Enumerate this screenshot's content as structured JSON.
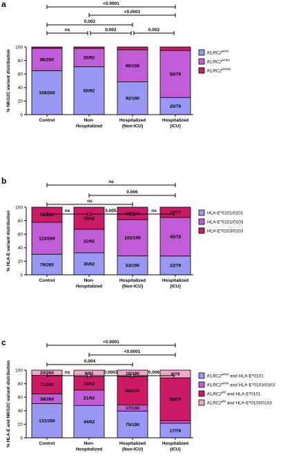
{
  "colors": {
    "blue": "#9999f5",
    "purple": "#bf5cd6",
    "magenta": "#cc1a66",
    "pink": "#f0a6c6",
    "black": "#000000"
  },
  "chart_data": [
    {
      "panel": "a",
      "type": "bar",
      "stacked": true,
      "ylabel": "% NKG2C variant distribution",
      "ylim": [
        0,
        100
      ],
      "yticks": [
        0,
        20,
        40,
        60,
        80,
        100
      ],
      "categories": [
        "Control",
        "Non-\nHospitalized",
        "Hospitalized\n(Non-ICU)",
        "Hospitalized\n(ICU)"
      ],
      "series": [
        {
          "name": "KLRC2^wt/wt",
          "color": "blue",
          "values": [
            65.0,
            70.7,
            48.4,
            25.3
          ],
          "labels": [
            "169/260",
            "65/92",
            "92/190",
            "20/79"
          ]
        },
        {
          "name": "KLRC2^wt/del",
          "color": "purple",
          "values": [
            33.1,
            27.2,
            47.4,
            69.6
          ],
          "labels": [
            "86/260",
            "25/92",
            "90/190",
            "55/79"
          ]
        },
        {
          "name": "KLRC2^del/del",
          "color": "magenta",
          "values": [
            1.9,
            2.1,
            4.2,
            5.1
          ],
          "labels": [
            "",
            "",
            "",
            ""
          ]
        }
      ],
      "legend_placement": "right",
      "comparisons": [
        {
          "from": 0,
          "to": 3,
          "label": "<0.0001"
        },
        {
          "from": 1,
          "to": 3,
          "label": "<0.0001"
        },
        {
          "from": 0,
          "to": 2,
          "label": "0.002"
        },
        {
          "from": 0,
          "to": 1,
          "label": "ns"
        },
        {
          "from": 1,
          "to": 2,
          "label": "0.002"
        },
        {
          "from": 2,
          "to": 3,
          "label": "0.002"
        }
      ]
    },
    {
      "panel": "b",
      "type": "bar",
      "stacked": true,
      "ylabel": "% HLA-E variant distribution",
      "ylim": [
        0,
        100
      ],
      "yticks": [
        0,
        20,
        40,
        60,
        80,
        100
      ],
      "categories": [
        "Control",
        "Non-\nHospitalized",
        "Hospitalized\n(Non-ICU)",
        "Hospitalized\n(ICU)"
      ],
      "series": [
        {
          "name": "HLA-E*0101/0101",
          "color": "blue",
          "values": [
            30.4,
            32.6,
            27.9,
            27.8
          ],
          "labels": [
            "79/260",
            "30/92",
            "53/190",
            "22/79"
          ]
        },
        {
          "name": "HLA-E*0101/0103",
          "color": "purple",
          "values": [
            47.3,
            34.8,
            53.7,
            57.0
          ],
          "labels": [
            "123/260",
            "32/92",
            "102/190",
            "45/79"
          ]
        },
        {
          "name": "HLA-E*0103/0103",
          "color": "magenta",
          "values": [
            22.3,
            32.6,
            18.4,
            15.2
          ],
          "labels": [
            "58/260",
            "30/92",
            "35/190",
            "12/79"
          ]
        }
      ],
      "legend_placement": "right",
      "comparisons": [
        {
          "from": 0,
          "to": 3,
          "label": "ns"
        },
        {
          "from": 1,
          "to": 3,
          "label": "0.006"
        },
        {
          "from": 0,
          "to": 2,
          "label": "ns"
        },
        {
          "from": 0,
          "to": 1,
          "label": "ns"
        },
        {
          "from": 1,
          "to": 2,
          "label": "0.005"
        },
        {
          "from": 2,
          "to": 3,
          "label": "ns"
        }
      ]
    },
    {
      "panel": "c",
      "type": "bar",
      "stacked": true,
      "ylabel": "% HLA-E and NKG2C variant distribution",
      "ylim": [
        0,
        100
      ],
      "yticks": [
        0,
        20,
        40,
        60,
        80,
        100
      ],
      "categories": [
        "Control",
        "Non-\nHospitalized",
        "Hospitalized\n(Non-ICU)",
        "Hospitalized\n(ICU)"
      ],
      "series": [
        {
          "name": "KLRC2^wt/wt and HLA-E*0101",
          "color": "blue",
          "values": [
            50.4,
            47.8,
            39.5,
            21.5
          ],
          "labels": [
            "131/260",
            "44/92",
            "75/190",
            "17/79"
          ]
        },
        {
          "name": "KLRC2^wt/wt and HLA-E*0103/0103",
          "color": "purple",
          "values": [
            14.6,
            22.8,
            8.9,
            3.8
          ],
          "labels": [
            "38/260",
            "21/92",
            "17/190",
            ""
          ]
        },
        {
          "name": "KLRC2^del and HLA-E*0101",
          "color": "magenta",
          "values": [
            27.3,
            19.6,
            42.1,
            63.3
          ],
          "labels": [
            "71/260",
            "18/92",
            "80/190",
            "50/79"
          ]
        },
        {
          "name": "KLRC2^del and HLA-E*0103/0103",
          "color": "pink",
          "values": [
            7.7,
            9.8,
            9.5,
            11.4
          ],
          "labels": [
            "20/260",
            "9/92",
            "18/190",
            "9/79"
          ]
        }
      ],
      "legend_placement": "right",
      "comparisons": [
        {
          "from": 0,
          "to": 3,
          "label": "<0.0001"
        },
        {
          "from": 1,
          "to": 3,
          "label": "<0.0001"
        },
        {
          "from": 0,
          "to": 2,
          "label": "0.004"
        },
        {
          "from": 0,
          "to": 1,
          "label": "ns"
        },
        {
          "from": 1,
          "to": 2,
          "label": "0.0003"
        },
        {
          "from": 2,
          "to": 3,
          "label": "0.006"
        }
      ]
    }
  ]
}
